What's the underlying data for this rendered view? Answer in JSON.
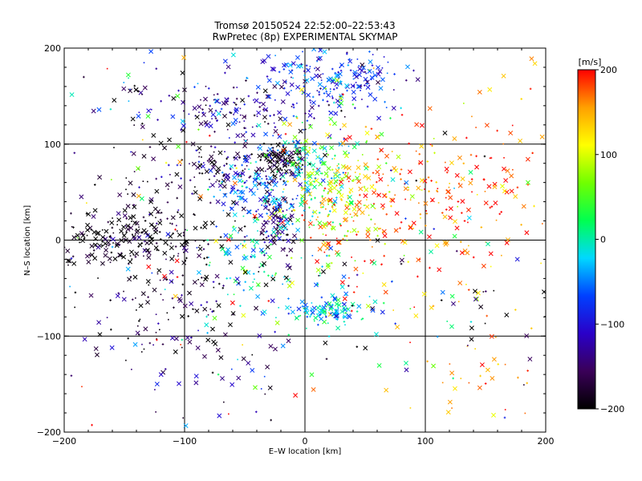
{
  "chart_data": {
    "type": "scatter",
    "title": "Tromsø 20150524 22:52:00–22:53:43",
    "subtitle": "RwPretec (8p) EXPERIMENTAL SKYMAP",
    "xlabel": "E–W location [km]",
    "ylabel": "N–S location [km]",
    "xlim": [
      -200,
      200
    ],
    "ylim": [
      -200,
      200
    ],
    "x_ticks": [
      -200,
      -100,
      0,
      100,
      200
    ],
    "y_ticks": [
      -200,
      -100,
      0,
      100,
      200
    ],
    "x_tick_labels": [
      "−200",
      "−100",
      "0",
      "100",
      "200"
    ],
    "y_tick_labels": [
      "−200",
      "−100",
      "0",
      "100",
      "200"
    ],
    "grid": true,
    "marker_types": [
      "x",
      "+",
      "."
    ],
    "colorbar": {
      "label": "[m/s]",
      "range": [
        -200,
        200
      ],
      "ticks": [
        200,
        100,
        0,
        -100,
        -200
      ],
      "tick_labels": [
        "200",
        "100",
        "0",
        "−100",
        "−200"
      ],
      "colormap": [
        "#000000",
        "#3a0058",
        "#2a00c8",
        "#0040ff",
        "#00d8ff",
        "#00ff50",
        "#70ff00",
        "#ffff00",
        "#ffa000",
        "#ff0000"
      ]
    },
    "clusters": [
      {
        "x": -140,
        "y": 155,
        "sx": 4,
        "sy": 4,
        "v": -190,
        "n": 8
      },
      {
        "x": 40,
        "y": 170,
        "sx": 22,
        "sy": 15,
        "v": -85,
        "n": 110
      },
      {
        "x": 0,
        "y": 175,
        "sx": 30,
        "sy": 18,
        "v": -80,
        "n": 70
      },
      {
        "x": -35,
        "y": 135,
        "sx": 40,
        "sy": 15,
        "v": -120,
        "n": 120
      },
      {
        "x": -75,
        "y": 130,
        "sx": 15,
        "sy": 10,
        "v": -145,
        "n": 40
      },
      {
        "x": -70,
        "y": 75,
        "sx": 30,
        "sy": 12,
        "v": -160,
        "n": 100
      },
      {
        "x": -20,
        "y": 85,
        "sx": 12,
        "sy": 8,
        "v": -185,
        "n": 110
      },
      {
        "x": 5,
        "y": 75,
        "sx": 20,
        "sy": 25,
        "v": -10,
        "n": 140
      },
      {
        "x": 25,
        "y": 60,
        "sx": 25,
        "sy": 40,
        "v": 90,
        "n": 130
      },
      {
        "x": 55,
        "y": 30,
        "sx": 35,
        "sy": 45,
        "v": 170,
        "n": 180
      },
      {
        "x": -25,
        "y": 25,
        "sx": 8,
        "sy": 22,
        "v": -150,
        "n": 120
      },
      {
        "x": -45,
        "y": 55,
        "sx": 15,
        "sy": 20,
        "v": -55,
        "n": 80
      },
      {
        "x": -40,
        "y": -15,
        "sx": 25,
        "sy": 30,
        "v": -10,
        "n": 90
      },
      {
        "x": 20,
        "y": -75,
        "sx": 15,
        "sy": 6,
        "v": -30,
        "n": 90
      },
      {
        "x": 15,
        "y": -60,
        "sx": 30,
        "sy": 20,
        "v": -10,
        "n": 40
      },
      {
        "x": 135,
        "y": 50,
        "sx": 35,
        "sy": 35,
        "v": 185,
        "n": 110
      },
      {
        "x": 150,
        "y": -120,
        "sx": 35,
        "sy": 40,
        "v": 170,
        "n": 40
      },
      {
        "x": -155,
        "y": 0,
        "sx": 35,
        "sy": 12,
        "v": -200,
        "n": 170
      },
      {
        "x": -110,
        "y": -45,
        "sx": 45,
        "sy": 45,
        "v": -190,
        "n": 170
      },
      {
        "x": -120,
        "y": 40,
        "sx": 35,
        "sy": 35,
        "v": -175,
        "n": 60
      },
      {
        "x": -80,
        "y": -110,
        "sx": 50,
        "sy": 50,
        "v": -140,
        "n": 60
      },
      {
        "x": 0,
        "y": 0,
        "sx": 120,
        "sy": 120,
        "v": 0,
        "vs": 150,
        "n": 250
      },
      {
        "x": 150,
        "y": 130,
        "sx": 35,
        "sy": 45,
        "v": 180,
        "n": 30
      },
      {
        "x": 160,
        "y": -80,
        "sx": 20,
        "sy": 20,
        "v": -200,
        "n": 15
      },
      {
        "x": -150,
        "y": 160,
        "sx": 30,
        "sy": 30,
        "v": -100,
        "vs": 100,
        "n": 30
      }
    ]
  }
}
